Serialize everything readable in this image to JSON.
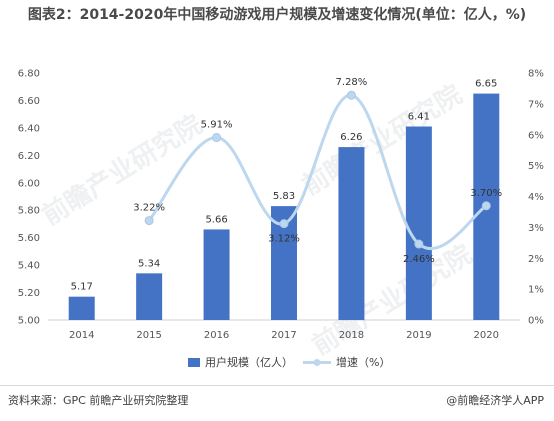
{
  "title": "图表2：2014-2020年中国移动游戏用户规模及增速变化情况(单位：亿人，%)",
  "footer": {
    "source": "资料来源：GPC 前瞻产业研究院整理",
    "brand": "@前瞻经济学人APP"
  },
  "watermark": "前瞻产业研究院",
  "chart_data": {
    "type": "bar",
    "categories": [
      "2014",
      "2015",
      "2016",
      "2017",
      "2018",
      "2019",
      "2020"
    ],
    "series": [
      {
        "name": "用户规模（亿人）",
        "type": "bar",
        "axis": "left",
        "values": [
          5.17,
          5.34,
          5.66,
          5.83,
          6.26,
          6.41,
          6.65
        ],
        "labels": [
          "5.17",
          "5.34",
          "5.66",
          "5.83",
          "6.26",
          "6.41",
          "6.65"
        ],
        "color": "#4472c4"
      },
      {
        "name": "增速（%）",
        "type": "line",
        "axis": "right",
        "values": [
          null,
          3.22,
          5.91,
          3.12,
          7.28,
          2.46,
          3.7
        ],
        "labels": [
          "",
          "3.22%",
          "5.91%",
          "3.12%",
          "7.28%",
          "2.46%",
          "3.70%"
        ],
        "color": "#bdd7ee"
      }
    ],
    "y_left": {
      "min": 5.0,
      "max": 6.8,
      "ticks": [
        "5.00",
        "5.20",
        "5.40",
        "5.60",
        "5.80",
        "6.00",
        "6.20",
        "6.40",
        "6.60",
        "6.80"
      ]
    },
    "y_right": {
      "min": 0,
      "max": 8,
      "ticks": [
        "0%",
        "1%",
        "2%",
        "3%",
        "4%",
        "5%",
        "6%",
        "7%",
        "8%"
      ]
    },
    "legend": {
      "position": "bottom"
    },
    "grid": false
  }
}
